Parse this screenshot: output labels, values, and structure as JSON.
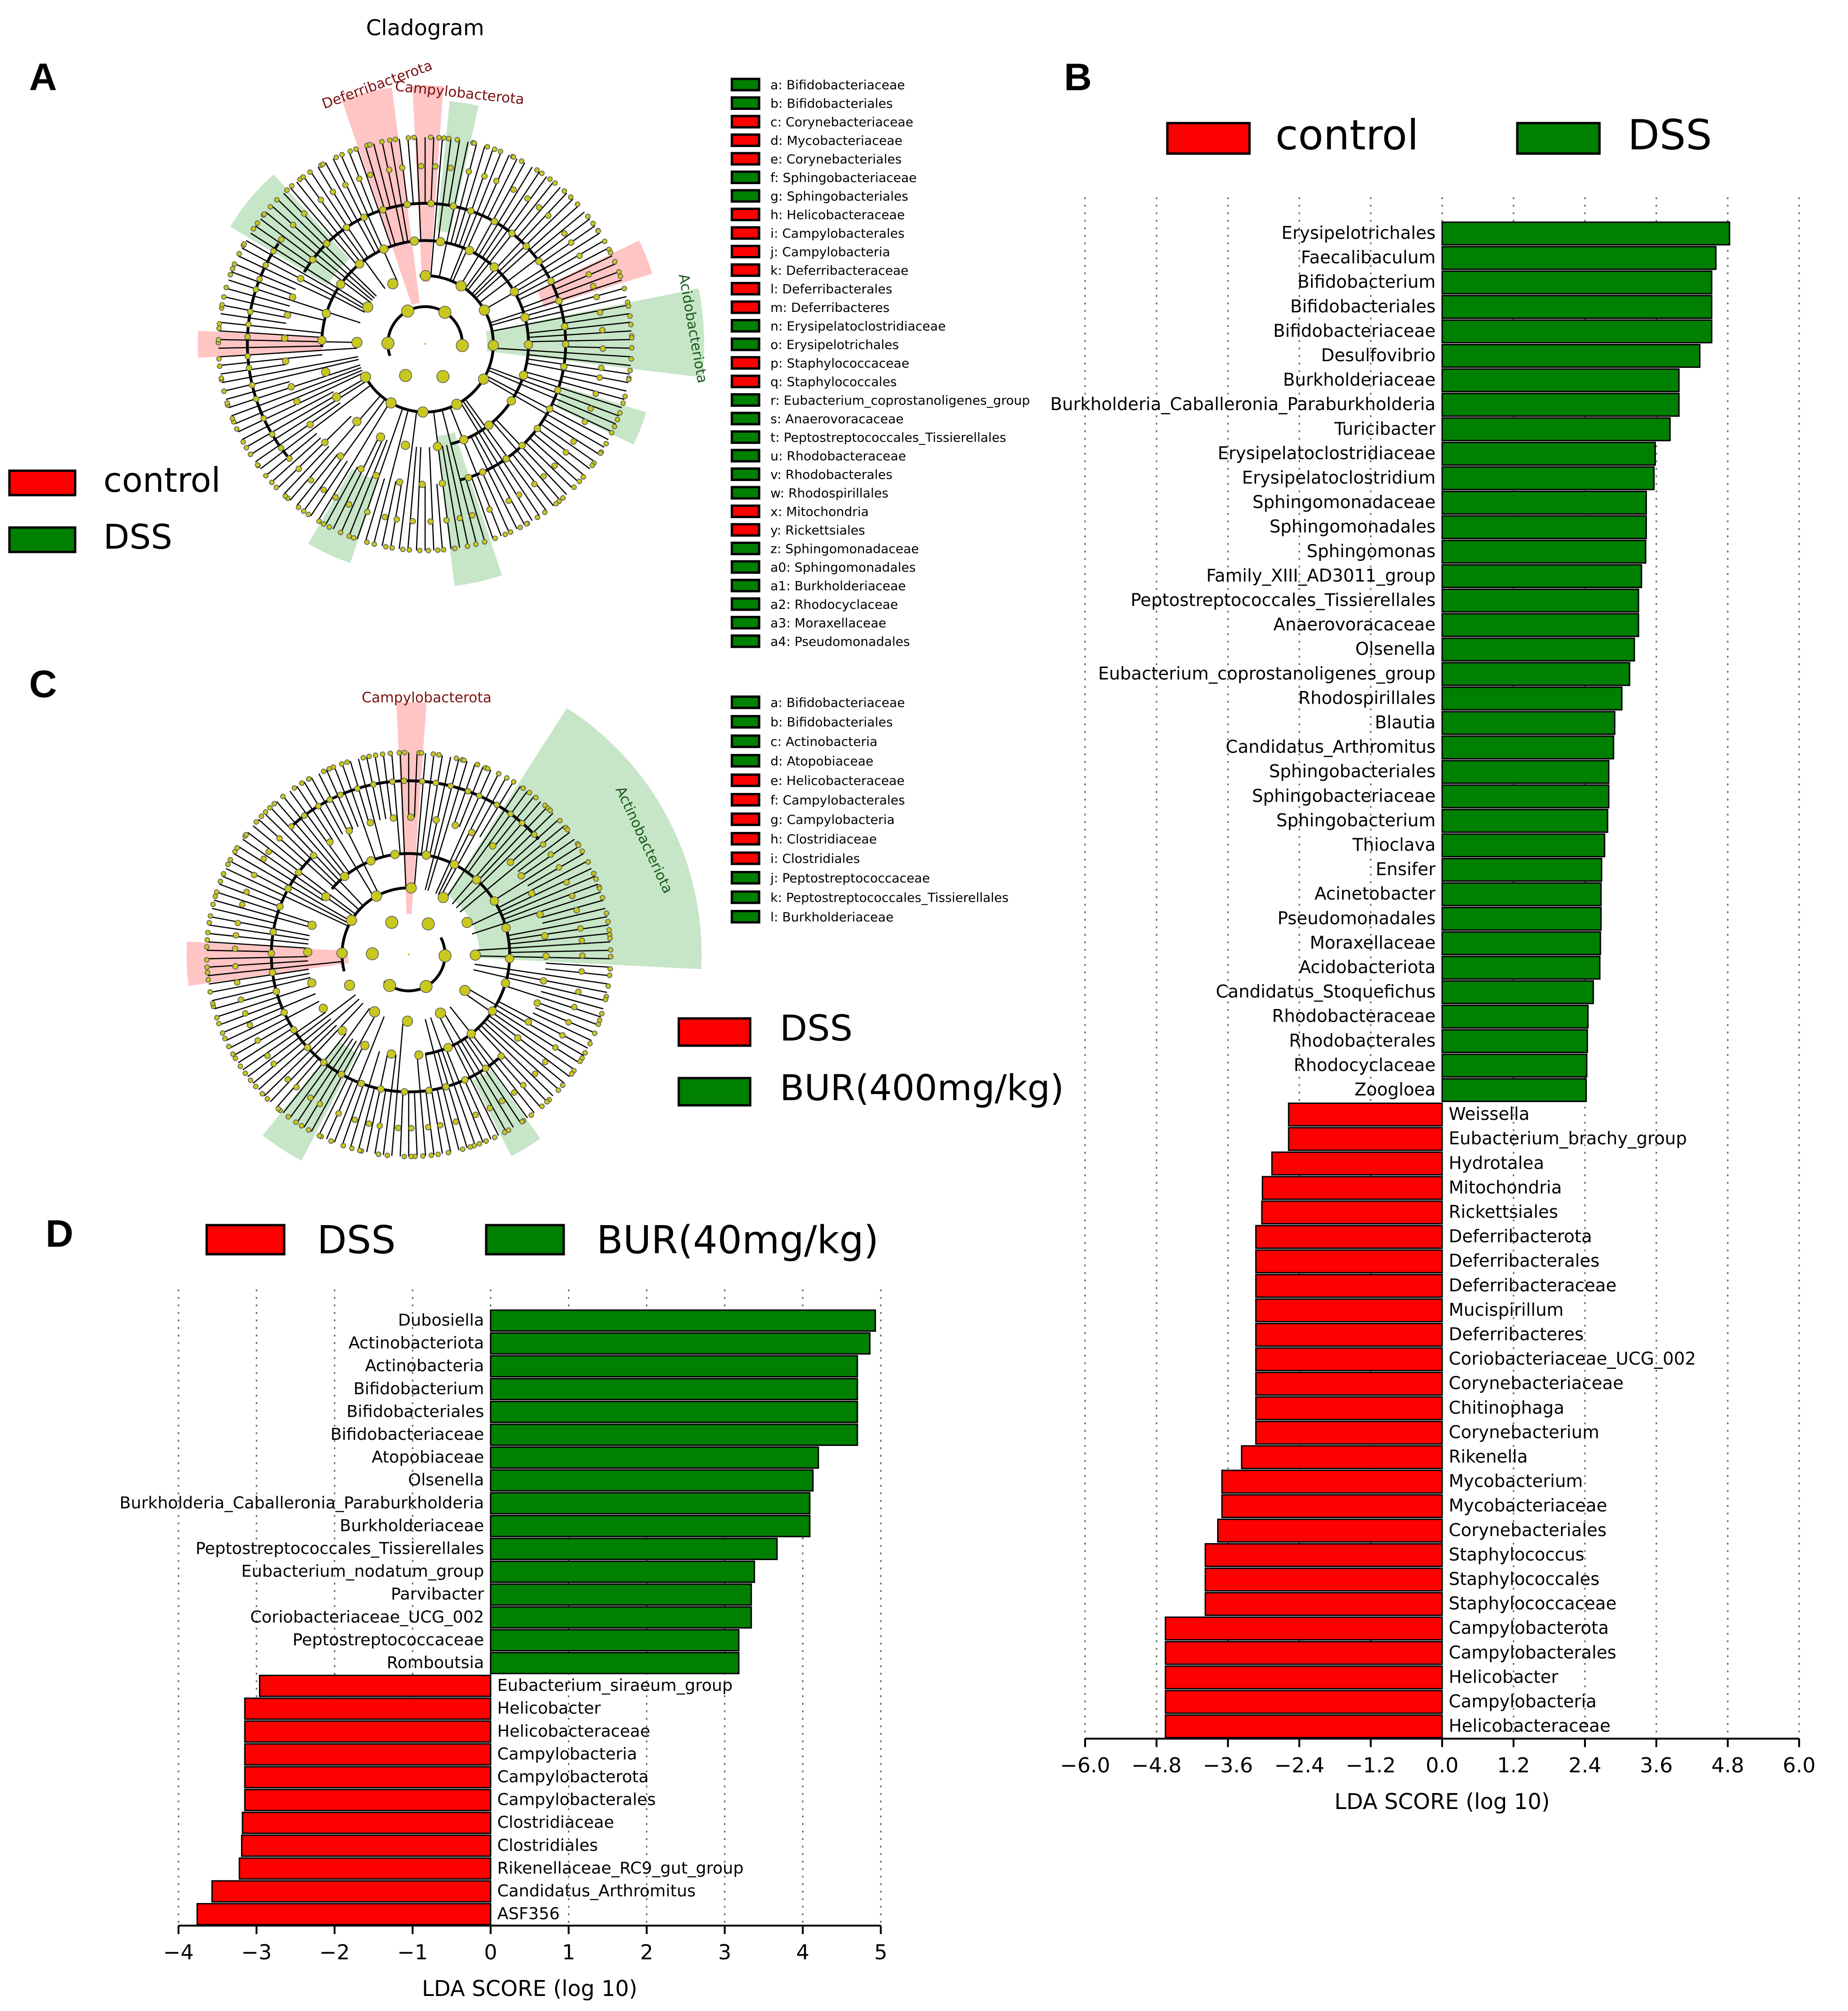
{
  "figure": {
    "panel_labels": [
      "A",
      "B",
      "C",
      "D"
    ],
    "colors": {
      "control": "#ff0000",
      "dss": "#008000",
      "node": "#c8c81e",
      "control_shade": "#ffb0b0",
      "dss_shade": "#b4dcb4"
    }
  },
  "chart_data": [
    {
      "id": "A",
      "type": "cladogram",
      "title": "Cladogram",
      "legend": [
        {
          "name": "control",
          "color": "#ff0000"
        },
        {
          "name": "DSS",
          "color": "#008000"
        }
      ],
      "clade_labels": [
        {
          "text": "Deferribacterota",
          "group": "control"
        },
        {
          "text": "Campylobacterota",
          "group": "control"
        },
        {
          "text": "Acidobacteriota",
          "group": "DSS"
        }
      ],
      "key": [
        {
          "code": "a",
          "taxon": "Bifidobacteriaceae",
          "group": "DSS"
        },
        {
          "code": "b",
          "taxon": "Bifidobacteriales",
          "group": "DSS"
        },
        {
          "code": "c",
          "taxon": "Corynebacteriaceae",
          "group": "control"
        },
        {
          "code": "d",
          "taxon": "Mycobacteriaceae",
          "group": "control"
        },
        {
          "code": "e",
          "taxon": "Corynebacteriales",
          "group": "control"
        },
        {
          "code": "f",
          "taxon": "Sphingobacteriaceae",
          "group": "DSS"
        },
        {
          "code": "g",
          "taxon": "Sphingobacteriales",
          "group": "DSS"
        },
        {
          "code": "h",
          "taxon": "Helicobacteraceae",
          "group": "control"
        },
        {
          "code": "i",
          "taxon": "Campylobacterales",
          "group": "control"
        },
        {
          "code": "j",
          "taxon": "Campylobacteria",
          "group": "control"
        },
        {
          "code": "k",
          "taxon": "Deferribacteraceae",
          "group": "control"
        },
        {
          "code": "l",
          "taxon": "Deferribacterales",
          "group": "control"
        },
        {
          "code": "m",
          "taxon": "Deferribacteres",
          "group": "control"
        },
        {
          "code": "n",
          "taxon": "Erysipelatoclostridiaceae",
          "group": "DSS"
        },
        {
          "code": "o",
          "taxon": "Erysipelotrichales",
          "group": "DSS"
        },
        {
          "code": "p",
          "taxon": "Staphylococcaceae",
          "group": "control"
        },
        {
          "code": "q",
          "taxon": "Staphylococcales",
          "group": "control"
        },
        {
          "code": "r",
          "taxon": "Eubacterium_coprostanoligenes_group",
          "group": "DSS"
        },
        {
          "code": "s",
          "taxon": "Anaerovoracaceae",
          "group": "DSS"
        },
        {
          "code": "t",
          "taxon": "Peptostreptococcales_Tissierellales",
          "group": "DSS"
        },
        {
          "code": "u",
          "taxon": "Rhodobacteraceae",
          "group": "DSS"
        },
        {
          "code": "v",
          "taxon": "Rhodobacterales",
          "group": "DSS"
        },
        {
          "code": "w",
          "taxon": "Rhodospirillales",
          "group": "DSS"
        },
        {
          "code": "x",
          "taxon": "Mitochondria",
          "group": "control"
        },
        {
          "code": "y",
          "taxon": "Rickettsiales",
          "group": "control"
        },
        {
          "code": "z",
          "taxon": "Sphingomonadaceae",
          "group": "DSS"
        },
        {
          "code": "a0",
          "taxon": "Sphingomonadales",
          "group": "DSS"
        },
        {
          "code": "a1",
          "taxon": "Burkholderiaceae",
          "group": "DSS"
        },
        {
          "code": "a2",
          "taxon": "Rhodocyclaceae",
          "group": "DSS"
        },
        {
          "code": "a3",
          "taxon": "Moraxellaceae",
          "group": "DSS"
        },
        {
          "code": "a4",
          "taxon": "Pseudomonadales",
          "group": "DSS"
        }
      ]
    },
    {
      "id": "B",
      "type": "bar",
      "orientation": "horizontal",
      "legend": [
        {
          "name": "control",
          "color": "#ff0000"
        },
        {
          "name": "DSS",
          "color": "#008000"
        }
      ],
      "xlabel": "LDA SCORE (log 10)",
      "xlim": [
        -6.0,
        6.0
      ],
      "xticks": [
        -6.0,
        -4.8,
        -3.6,
        -2.4,
        -1.2,
        0.0,
        1.2,
        2.4,
        3.6,
        4.8,
        6.0
      ],
      "tick_labels": [
        "−6.0",
        "−4.8",
        "−3.6",
        "−2.4",
        "−1.2",
        "0.0",
        "1.2",
        "2.4",
        "3.6",
        "4.8",
        "6.0"
      ],
      "grid": "vertical dotted",
      "bars": [
        {
          "label": "Erysipelotrichales",
          "value": 4.83,
          "group": "DSS"
        },
        {
          "label": "Faecalibaculum",
          "value": 4.6,
          "group": "DSS"
        },
        {
          "label": "Bifidobacterium",
          "value": 4.53,
          "group": "DSS"
        },
        {
          "label": "Bifidobacteriales",
          "value": 4.53,
          "group": "DSS"
        },
        {
          "label": "Bifidobacteriaceae",
          "value": 4.53,
          "group": "DSS"
        },
        {
          "label": "Desulfovibrio",
          "value": 4.33,
          "group": "DSS"
        },
        {
          "label": "Burkholderiaceae",
          "value": 3.98,
          "group": "DSS"
        },
        {
          "label": "Burkholderia_Caballeronia_Paraburkholderia",
          "value": 3.98,
          "group": "DSS"
        },
        {
          "label": "Turicibacter",
          "value": 3.83,
          "group": "DSS"
        },
        {
          "label": "Erysipelatoclostridiaceae",
          "value": 3.58,
          "group": "DSS"
        },
        {
          "label": "Erysipelatoclostridium",
          "value": 3.56,
          "group": "DSS"
        },
        {
          "label": "Sphingomonadaceae",
          "value": 3.43,
          "group": "DSS"
        },
        {
          "label": "Sphingomonadales",
          "value": 3.43,
          "group": "DSS"
        },
        {
          "label": "Sphingomonas",
          "value": 3.42,
          "group": "DSS"
        },
        {
          "label": "Family_XIII_AD3011_group",
          "value": 3.35,
          "group": "DSS"
        },
        {
          "label": "Peptostreptococcales_Tissierellales",
          "value": 3.3,
          "group": "DSS"
        },
        {
          "label": "Anaerovoracaceae",
          "value": 3.3,
          "group": "DSS"
        },
        {
          "label": "Olsenella",
          "value": 3.23,
          "group": "DSS"
        },
        {
          "label": "Eubacterium_coprostanoligenes_group",
          "value": 3.15,
          "group": "DSS"
        },
        {
          "label": "Rhodospirillales",
          "value": 3.02,
          "group": "DSS"
        },
        {
          "label": "Blautia",
          "value": 2.9,
          "group": "DSS"
        },
        {
          "label": "Candidatus_Arthromitus",
          "value": 2.88,
          "group": "DSS"
        },
        {
          "label": "Sphingobacteriales",
          "value": 2.8,
          "group": "DSS"
        },
        {
          "label": "Sphingobacteriaceae",
          "value": 2.8,
          "group": "DSS"
        },
        {
          "label": "Sphingobacterium",
          "value": 2.78,
          "group": "DSS"
        },
        {
          "label": "Thioclava",
          "value": 2.73,
          "group": "DSS"
        },
        {
          "label": "Ensifer",
          "value": 2.68,
          "group": "DSS"
        },
        {
          "label": "Acinetobacter",
          "value": 2.67,
          "group": "DSS"
        },
        {
          "label": "Pseudomonadales",
          "value": 2.67,
          "group": "DSS"
        },
        {
          "label": "Moraxellaceae",
          "value": 2.66,
          "group": "DSS"
        },
        {
          "label": "Acidobacteriota",
          "value": 2.65,
          "group": "DSS"
        },
        {
          "label": "Candidatus_Stoquefichus",
          "value": 2.54,
          "group": "DSS"
        },
        {
          "label": "Rhodobacteraceae",
          "value": 2.45,
          "group": "DSS"
        },
        {
          "label": "Rhodobacterales",
          "value": 2.44,
          "group": "DSS"
        },
        {
          "label": "Rhodocyclaceae",
          "value": 2.43,
          "group": "DSS"
        },
        {
          "label": "Zoogloea",
          "value": 2.42,
          "group": "DSS"
        },
        {
          "label": "Weissella",
          "value": -2.58,
          "group": "control"
        },
        {
          "label": "Eubacterium_brachy_group",
          "value": -2.58,
          "group": "control"
        },
        {
          "label": "Hydrotalea",
          "value": -2.86,
          "group": "control"
        },
        {
          "label": "Mitochondria",
          "value": -3.02,
          "group": "control"
        },
        {
          "label": "Rickettsiales",
          "value": -3.03,
          "group": "control"
        },
        {
          "label": "Deferribacterota",
          "value": -3.13,
          "group": "control"
        },
        {
          "label": "Deferribacterales",
          "value": -3.13,
          "group": "control"
        },
        {
          "label": "Deferribacteraceae",
          "value": -3.13,
          "group": "control"
        },
        {
          "label": "Mucispirillum",
          "value": -3.13,
          "group": "control"
        },
        {
          "label": "Deferribacteres",
          "value": -3.13,
          "group": "control"
        },
        {
          "label": "Coriobacteriaceae_UCG_002",
          "value": -3.13,
          "group": "control"
        },
        {
          "label": "Corynebacteriaceae",
          "value": -3.13,
          "group": "control"
        },
        {
          "label": "Chitinophaga",
          "value": -3.13,
          "group": "control"
        },
        {
          "label": "Corynebacterium",
          "value": -3.13,
          "group": "control"
        },
        {
          "label": "Rikenella",
          "value": -3.37,
          "group": "control"
        },
        {
          "label": "Mycobacterium",
          "value": -3.7,
          "group": "control"
        },
        {
          "label": "Mycobacteriaceae",
          "value": -3.7,
          "group": "control"
        },
        {
          "label": "Corynebacteriales",
          "value": -3.77,
          "group": "control"
        },
        {
          "label": "Staphylococcus",
          "value": -3.98,
          "group": "control"
        },
        {
          "label": "Staphylococcales",
          "value": -3.98,
          "group": "control"
        },
        {
          "label": "Staphylococcaceae",
          "value": -3.98,
          "group": "control"
        },
        {
          "label": "Campylobacterota",
          "value": -4.65,
          "group": "control"
        },
        {
          "label": "Campylobacterales",
          "value": -4.65,
          "group": "control"
        },
        {
          "label": "Helicobacter",
          "value": -4.65,
          "group": "control"
        },
        {
          "label": "Campylobacteria",
          "value": -4.65,
          "group": "control"
        },
        {
          "label": "Helicobacteraceae",
          "value": -4.65,
          "group": "control"
        }
      ]
    },
    {
      "id": "C",
      "type": "cladogram",
      "legend": [
        {
          "name": "DSS",
          "color": "#ff0000"
        },
        {
          "name": "BUR(400mg/kg)",
          "color": "#008000"
        }
      ],
      "clade_labels": [
        {
          "text": "Campylobacterota",
          "group": "DSS"
        },
        {
          "text": "Actinobacteriota",
          "group": "BUR(400mg/kg)"
        }
      ],
      "key": [
        {
          "code": "a",
          "taxon": "Bifidobacteriaceae",
          "group": "BUR"
        },
        {
          "code": "b",
          "taxon": "Bifidobacteriales",
          "group": "BUR"
        },
        {
          "code": "c",
          "taxon": "Actinobacteria",
          "group": "BUR"
        },
        {
          "code": "d",
          "taxon": "Atopobiaceae",
          "group": "BUR"
        },
        {
          "code": "e",
          "taxon": "Helicobacteraceae",
          "group": "DSS"
        },
        {
          "code": "f",
          "taxon": "Campylobacterales",
          "group": "DSS"
        },
        {
          "code": "g",
          "taxon": "Campylobacteria",
          "group": "DSS"
        },
        {
          "code": "h",
          "taxon": "Clostridiaceae",
          "group": "DSS"
        },
        {
          "code": "i",
          "taxon": "Clostridiales",
          "group": "DSS"
        },
        {
          "code": "j",
          "taxon": "Peptostreptococcaceae",
          "group": "BUR"
        },
        {
          "code": "k",
          "taxon": "Peptostreptococcales_Tissierellales",
          "group": "BUR"
        },
        {
          "code": "l",
          "taxon": "Burkholderiaceae",
          "group": "BUR"
        }
      ]
    },
    {
      "id": "D",
      "type": "bar",
      "orientation": "horizontal",
      "legend": [
        {
          "name": "DSS",
          "color": "#ff0000"
        },
        {
          "name": "BUR(40mg/kg)",
          "color": "#008000"
        }
      ],
      "xlabel": "LDA SCORE (log 10)",
      "xlim": [
        -4.0,
        5.0
      ],
      "xticks": [
        -4,
        -3,
        -2,
        -1,
        0,
        1,
        2,
        3,
        4,
        5
      ],
      "tick_labels": [
        "−4",
        "−3",
        "−2",
        "−1",
        "0",
        "1",
        "2",
        "3",
        "4",
        "5"
      ],
      "grid": "vertical dotted",
      "bars": [
        {
          "label": "Dubosiella",
          "value": 4.93,
          "group": "BUR"
        },
        {
          "label": "Actinobacteriota",
          "value": 4.86,
          "group": "BUR"
        },
        {
          "label": "Actinobacteria",
          "value": 4.7,
          "group": "BUR"
        },
        {
          "label": "Bifidobacterium",
          "value": 4.7,
          "group": "BUR"
        },
        {
          "label": "Bifidobacteriales",
          "value": 4.7,
          "group": "BUR"
        },
        {
          "label": "Bifidobacteriaceae",
          "value": 4.7,
          "group": "BUR"
        },
        {
          "label": "Atopobiaceae",
          "value": 4.2,
          "group": "BUR"
        },
        {
          "label": "Olsenella",
          "value": 4.13,
          "group": "BUR"
        },
        {
          "label": "Burkholderia_Caballeronia_Paraburkholderia",
          "value": 4.09,
          "group": "BUR"
        },
        {
          "label": "Burkholderiaceae",
          "value": 4.09,
          "group": "BUR"
        },
        {
          "label": "Peptostreptococcales_Tissierellales",
          "value": 3.67,
          "group": "BUR"
        },
        {
          "label": "Eubacterium_nodatum_group",
          "value": 3.38,
          "group": "BUR"
        },
        {
          "label": "Parvibacter",
          "value": 3.34,
          "group": "BUR"
        },
        {
          "label": "Coriobacteriaceae_UCG_002",
          "value": 3.34,
          "group": "BUR"
        },
        {
          "label": "Peptostreptococcaceae",
          "value": 3.18,
          "group": "BUR"
        },
        {
          "label": "Romboutsia",
          "value": 3.18,
          "group": "BUR"
        },
        {
          "label": "Eubacterium_siraeum_group",
          "value": -2.96,
          "group": "DSS"
        },
        {
          "label": "Helicobacter",
          "value": -3.15,
          "group": "DSS"
        },
        {
          "label": "Helicobacteraceae",
          "value": -3.15,
          "group": "DSS"
        },
        {
          "label": "Campylobacteria",
          "value": -3.15,
          "group": "DSS"
        },
        {
          "label": "Campylobacterota",
          "value": -3.15,
          "group": "DSS"
        },
        {
          "label": "Campylobacterales",
          "value": -3.15,
          "group": "DSS"
        },
        {
          "label": "Clostridiaceae",
          "value": -3.18,
          "group": "DSS"
        },
        {
          "label": "Clostridiales",
          "value": -3.19,
          "group": "DSS"
        },
        {
          "label": "Rikenellaceae_RC9_gut_group",
          "value": -3.22,
          "group": "DSS"
        },
        {
          "label": "Candidatus_Arthromitus",
          "value": -3.57,
          "group": "DSS"
        },
        {
          "label": "ASF356",
          "value": -3.76,
          "group": "DSS"
        }
      ]
    }
  ]
}
